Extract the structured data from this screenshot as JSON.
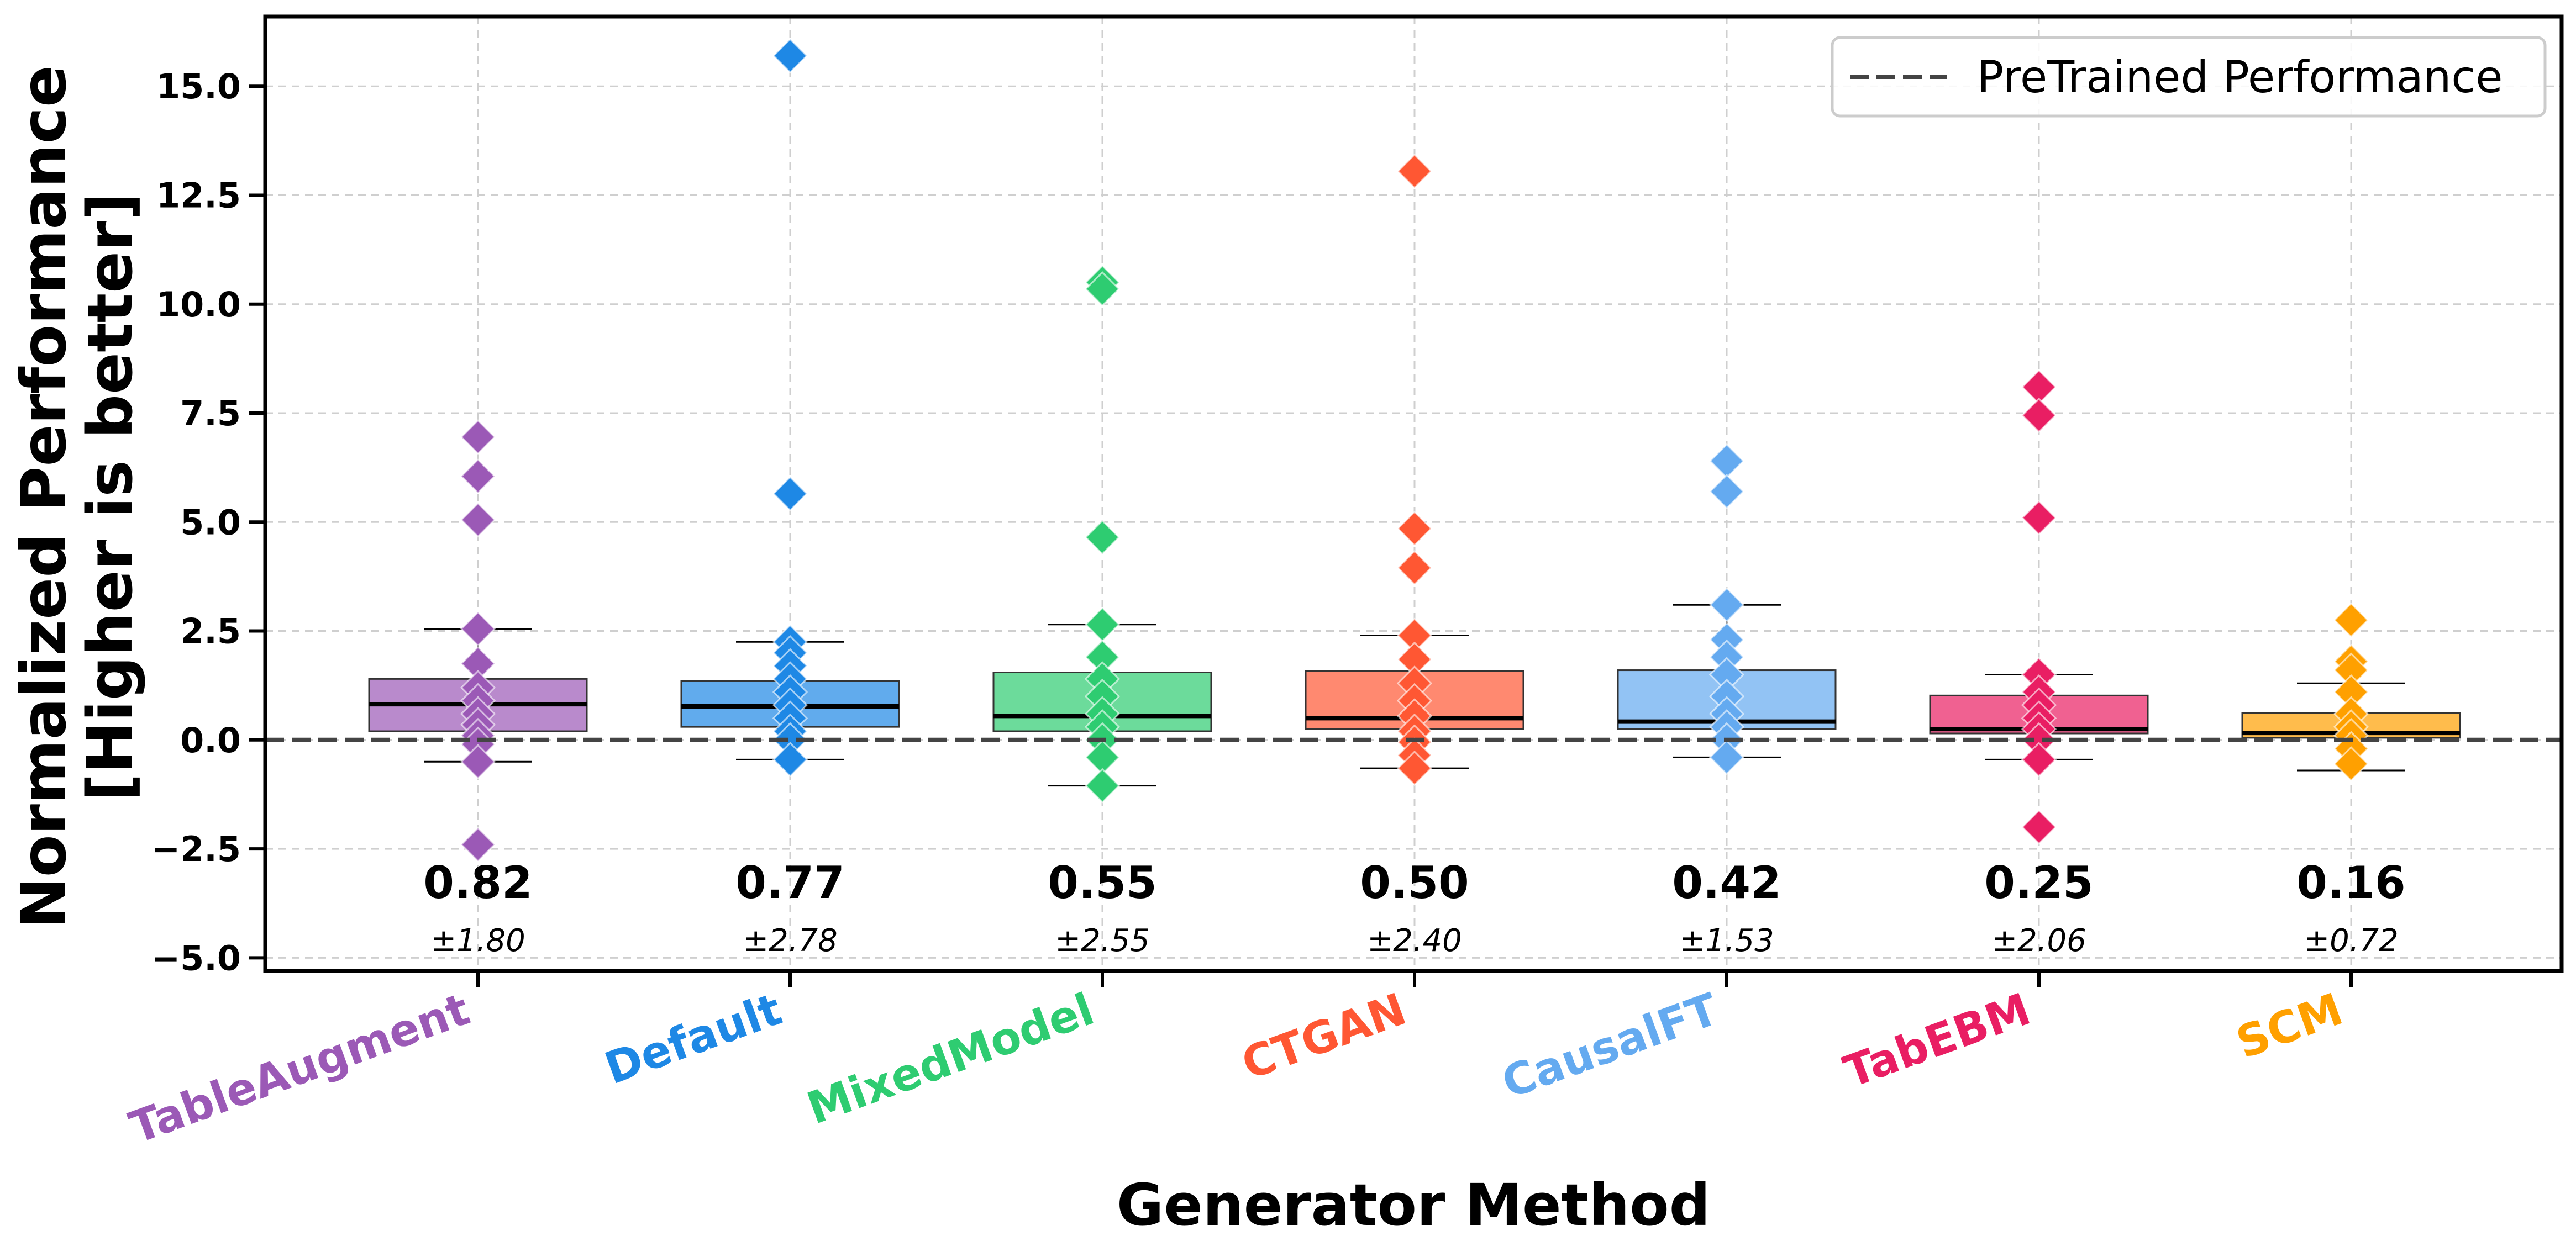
{
  "chart_data": {
    "type": "box",
    "xlabel": "Generator Method",
    "ylabel": "Normalized Performance\n[Higher is better]",
    "ylim": [
      -5.3,
      16.6
    ],
    "yticks": [
      -5.0,
      -2.5,
      0.0,
      2.5,
      5.0,
      7.5,
      10.0,
      12.5,
      15.0
    ],
    "ytick_labels": [
      "−5.0",
      "−2.5",
      "0.0",
      "2.5",
      "5.0",
      "7.5",
      "10.0",
      "12.5",
      "15.0"
    ],
    "grid": true,
    "legend": {
      "placement": "top-right",
      "entries": [
        "PreTrained Performance"
      ]
    },
    "reference_line": {
      "y": 0.0,
      "label": "PreTrained Performance",
      "style": "dashed",
      "color": "#444444"
    },
    "categories": [
      "TableAugment",
      "Default",
      "MixedModel",
      "CTGAN",
      "CausalFT",
      "TabEBM",
      "SCM"
    ],
    "series": [
      {
        "name": "TableAugment",
        "color": "#9b59b6",
        "median": 0.82,
        "median_label": "0.82",
        "std_label": "±1.80",
        "q1": 0.2,
        "q3": 1.4,
        "whisker_low": -0.5,
        "whisker_high": 2.55,
        "points": [
          6.95,
          6.05,
          5.05,
          2.55,
          1.75,
          1.2,
          0.9,
          0.6,
          0.35,
          0.1,
          -0.1,
          -0.5,
          -2.4
        ]
      },
      {
        "name": "Default",
        "color": "#1e88e5",
        "median": 0.77,
        "median_label": "0.77",
        "std_label": "±2.78",
        "q1": 0.3,
        "q3": 1.35,
        "whisker_low": -0.45,
        "whisker_high": 2.25,
        "points": [
          15.7,
          5.65,
          2.25,
          2.0,
          1.7,
          1.4,
          1.1,
          0.8,
          0.5,
          0.2,
          0.0,
          -0.45
        ]
      },
      {
        "name": "MixedModel",
        "color": "#2ecc71",
        "median": 0.55,
        "median_label": "0.55",
        "std_label": "±2.55",
        "q1": 0.2,
        "q3": 1.55,
        "whisker_low": -1.05,
        "whisker_high": 2.65,
        "points": [
          10.5,
          10.35,
          4.65,
          2.65,
          1.9,
          1.4,
          1.0,
          0.6,
          0.3,
          0.0,
          -0.4,
          -1.05
        ]
      },
      {
        "name": "CTGAN",
        "color": "#ff5733",
        "median": 0.5,
        "median_label": "0.50",
        "std_label": "±2.40",
        "q1": 0.25,
        "q3": 1.58,
        "whisker_low": -0.65,
        "whisker_high": 2.4,
        "points": [
          13.05,
          4.85,
          3.95,
          2.4,
          1.85,
          1.3,
          0.9,
          0.55,
          0.2,
          -0.05,
          -0.35,
          -0.65
        ]
      },
      {
        "name": "CausalFT",
        "color": "#64aaf0",
        "median": 0.42,
        "median_label": "0.42",
        "std_label": "±1.53",
        "q1": 0.25,
        "q3": 1.6,
        "whisker_low": -0.4,
        "whisker_high": 3.1,
        "points": [
          6.4,
          5.7,
          3.1,
          2.3,
          1.9,
          1.5,
          1.0,
          0.6,
          0.3,
          0.0,
          -0.4
        ]
      },
      {
        "name": "TabEBM",
        "color": "#e91e63",
        "median": 0.25,
        "median_label": "0.25",
        "std_label": "±2.06",
        "q1": 0.15,
        "q3": 1.02,
        "whisker_low": -0.45,
        "whisker_high": 1.5,
        "points": [
          8.1,
          7.45,
          5.1,
          1.5,
          1.1,
          0.8,
          0.5,
          0.25,
          0.0,
          -0.45,
          -2.0
        ]
      },
      {
        "name": "SCM",
        "color": "#ffa000",
        "median": 0.16,
        "median_label": "0.16",
        "std_label": "±0.72",
        "q1": 0.05,
        "q3": 0.62,
        "whisker_low": -0.7,
        "whisker_high": 1.3,
        "points": [
          2.75,
          1.8,
          1.6,
          1.1,
          0.6,
          0.3,
          0.1,
          -0.2,
          -0.55
        ]
      }
    ]
  }
}
